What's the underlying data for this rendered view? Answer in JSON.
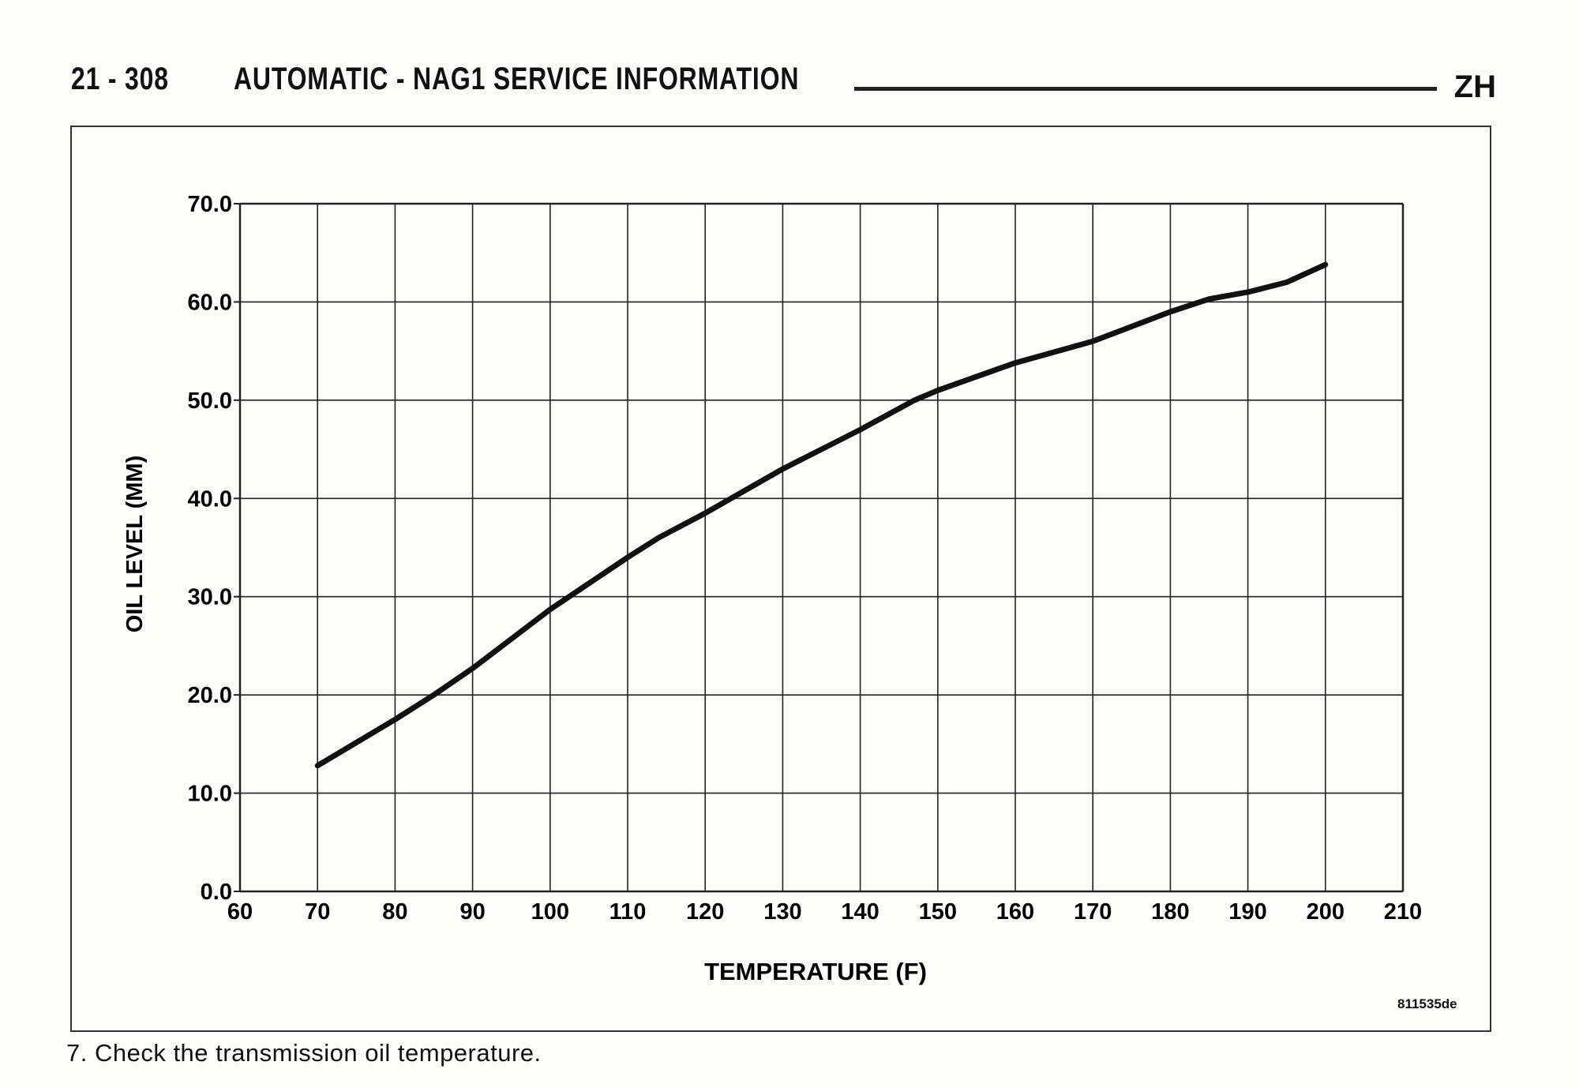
{
  "header": {
    "page_number": "21 - 308",
    "title": "AUTOMATIC - NAG1 SERVICE INFORMATION",
    "section_code": "ZH"
  },
  "figure_id": "811535de",
  "step_text": "7. Check the transmission oil temperature.",
  "chart_data": {
    "type": "line",
    "title": "",
    "xlabel": "TEMPERATURE (F)",
    "ylabel": "OIL LEVEL (MM)",
    "xlim": [
      60,
      210
    ],
    "ylim": [
      0,
      70
    ],
    "xticks": [
      "60",
      "70",
      "80",
      "90",
      "100",
      "110",
      "120",
      "130",
      "140",
      "150",
      "160",
      "170",
      "180",
      "190",
      "200",
      "210"
    ],
    "yticks": [
      "0.0",
      "10.0",
      "20.0",
      "30.0",
      "40.0",
      "50.0",
      "60.0",
      "70.0"
    ],
    "grid": true,
    "line_color": "#111111",
    "series": [
      {
        "x": [
          70,
          80,
          85,
          90,
          100,
          110,
          114,
          120,
          130,
          140,
          147,
          150,
          160,
          170,
          180,
          185,
          190,
          195,
          200
        ],
        "y": [
          12.8,
          17.5,
          20.0,
          22.7,
          28.7,
          34.0,
          36.0,
          38.5,
          43.0,
          47.0,
          50.0,
          51.0,
          53.8,
          56.0,
          59.0,
          60.3,
          61.0,
          62.0,
          63.8
        ]
      }
    ]
  }
}
